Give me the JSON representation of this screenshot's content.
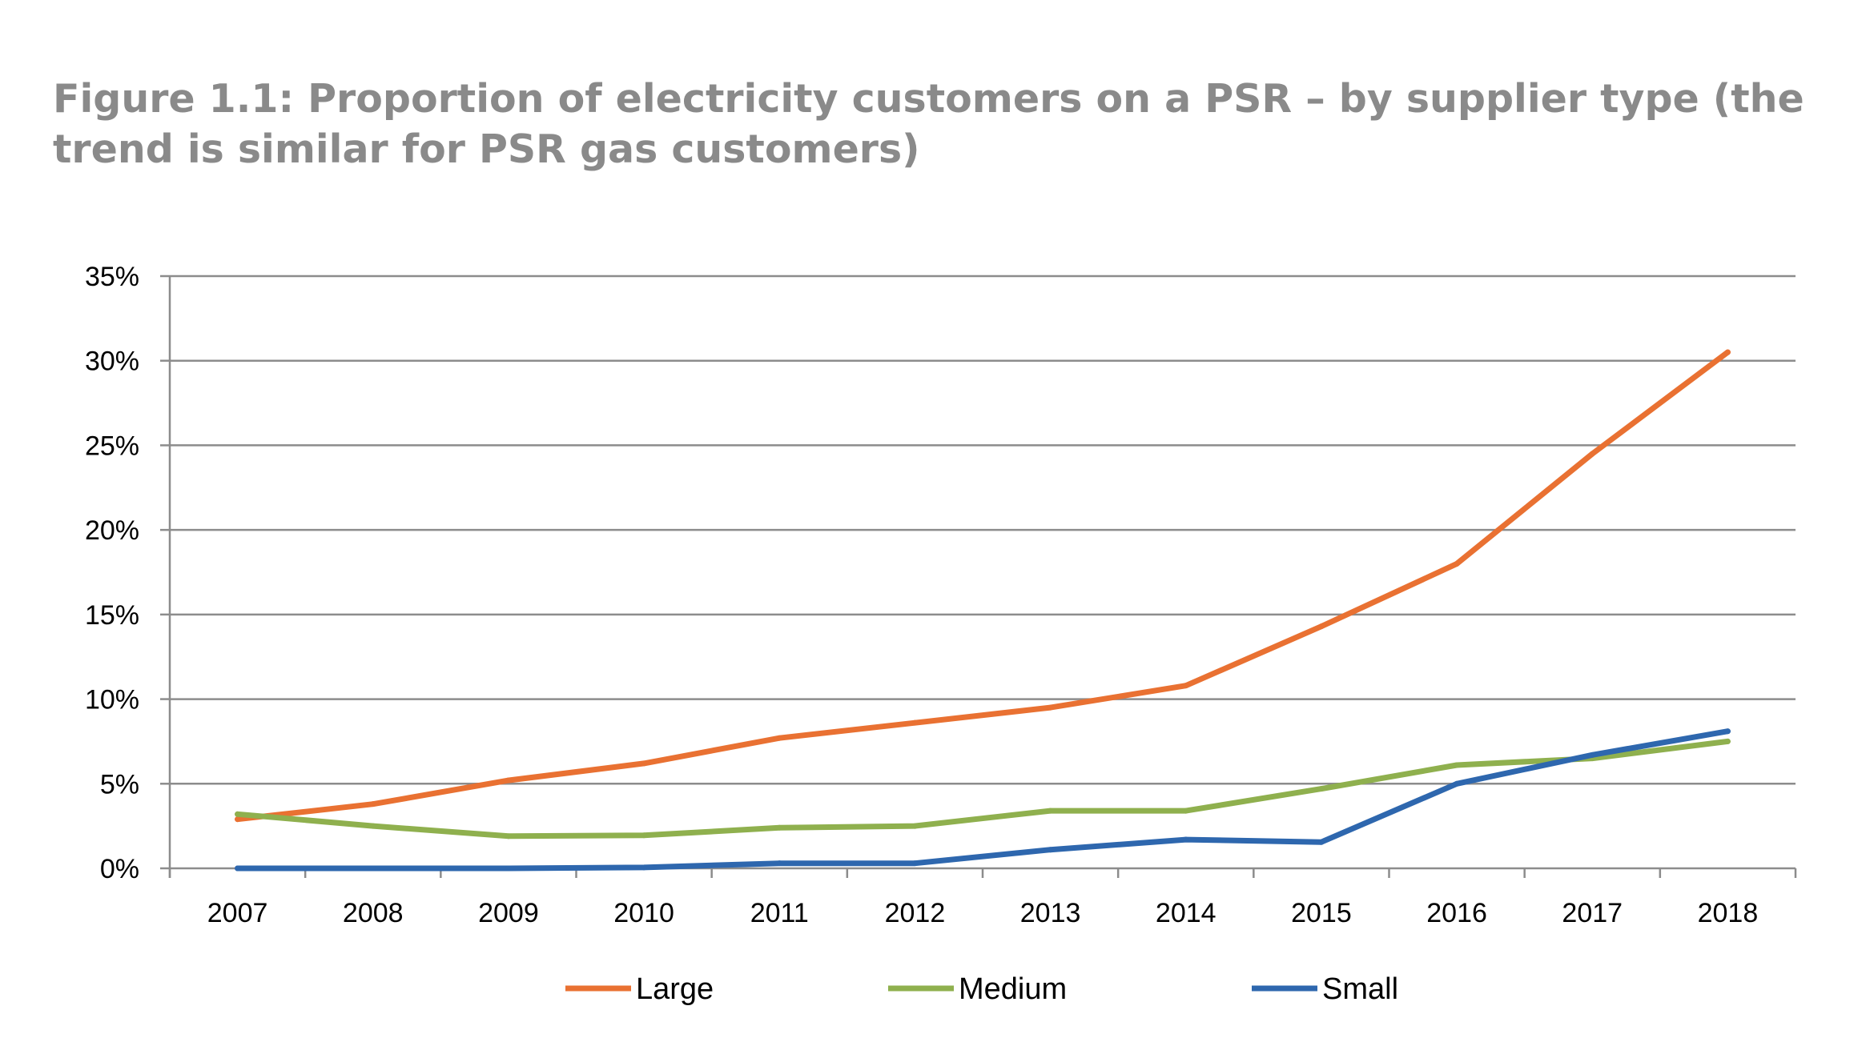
{
  "title": "Figure 1.1: Proportion of electricity customers on a PSR – by supplier type (the trend is similar for PSR gas customers)",
  "chart_data": {
    "type": "line",
    "categories": [
      "2007",
      "2008",
      "2009",
      "2010",
      "2011",
      "2012",
      "2013",
      "2014",
      "2015",
      "2016",
      "2017",
      "2018"
    ],
    "ylim": [
      0,
      35
    ],
    "yticks": [
      0,
      5,
      10,
      15,
      20,
      25,
      30,
      35
    ],
    "ytick_labels": [
      "0%",
      "5%",
      "10%",
      "15%",
      "20%",
      "25%",
      "30%",
      "35%"
    ],
    "y_unit": "percent",
    "grid": "horizontal",
    "legend_position": "bottom",
    "xlabel": "",
    "ylabel": "",
    "series": [
      {
        "name": "Large",
        "color": "#E97132",
        "values": [
          2.9,
          3.8,
          5.2,
          6.2,
          7.7,
          8.6,
          9.5,
          10.8,
          14.3,
          18.0,
          24.5,
          30.5
        ]
      },
      {
        "name": "Medium",
        "color": "#8FB04E",
        "values": [
          3.2,
          2.5,
          1.9,
          1.95,
          2.4,
          2.5,
          3.4,
          3.4,
          4.7,
          6.1,
          6.5,
          7.5
        ]
      },
      {
        "name": "Small",
        "color": "#2E67AE",
        "values": [
          0.0,
          0.0,
          0.0,
          0.05,
          0.3,
          0.3,
          1.1,
          1.7,
          1.55,
          5.0,
          6.7,
          8.1
        ]
      }
    ]
  }
}
